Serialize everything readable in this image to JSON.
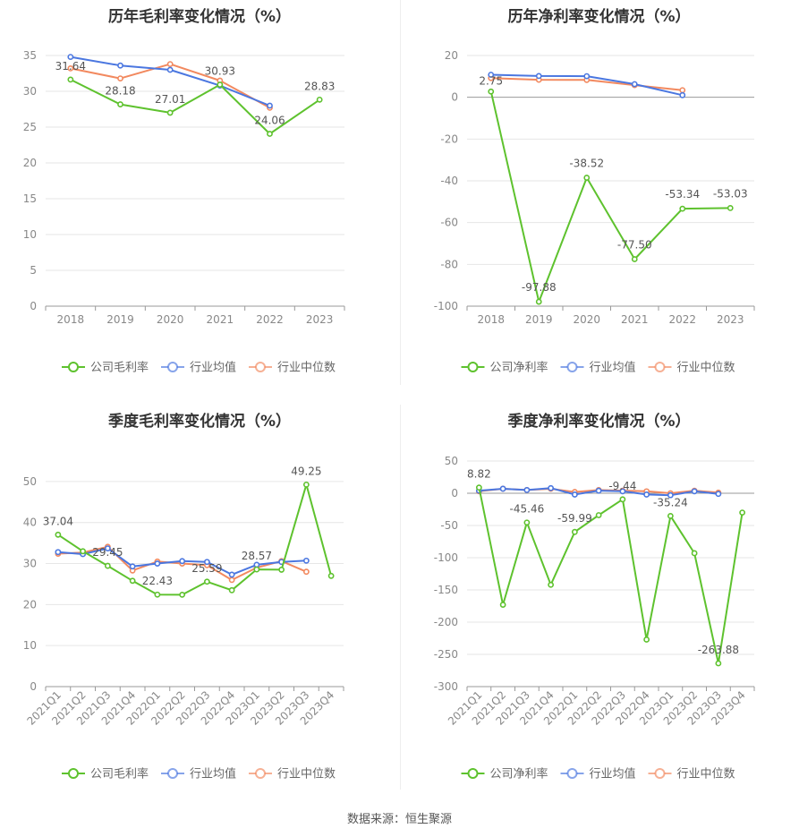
{
  "colors": {
    "company": "#5ec22e",
    "avg": "#4b77e0",
    "median": "#f2895f",
    "grid": "#e6e6e6",
    "axis": "#999999",
    "tick": "#888888",
    "label": "#555555"
  },
  "source": "数据来源：恒生聚源",
  "chart_data": [
    {
      "type": "line",
      "title": "历年毛利率变化情况（%）",
      "categories": [
        "2018",
        "2019",
        "2020",
        "2021",
        "2022",
        "2023"
      ],
      "ylim": [
        0,
        35
      ],
      "yticks": [
        0,
        5,
        10,
        15,
        20,
        25,
        30,
        35
      ],
      "rotate_x": false,
      "series": [
        {
          "name": "公司毛利率",
          "key": "company",
          "values": [
            31.64,
            28.18,
            27.01,
            30.93,
            24.06,
            28.83
          ]
        },
        {
          "name": "行业均值",
          "key": "avg",
          "values": [
            34.8,
            33.6,
            33.0,
            30.8,
            28.0,
            null
          ]
        },
        {
          "name": "行业中位数",
          "key": "median",
          "values": [
            33.2,
            31.8,
            33.8,
            31.5,
            27.7,
            null
          ]
        }
      ],
      "labels": [
        "31.64",
        "28.18",
        "27.01",
        "30.93",
        "24.06",
        "28.83"
      ]
    },
    {
      "type": "line",
      "title": "历年净利率变化情况（%）",
      "categories": [
        "2018",
        "2019",
        "2020",
        "2021",
        "2022",
        "2023"
      ],
      "ylim": [
        -100,
        20
      ],
      "yticks": [
        -100,
        -80,
        -60,
        -40,
        -20,
        0,
        20
      ],
      "rotate_x": false,
      "series": [
        {
          "name": "公司净利率",
          "key": "company",
          "values": [
            2.75,
            -97.88,
            -38.52,
            -77.5,
            -53.34,
            -53.03
          ]
        },
        {
          "name": "行业均值",
          "key": "avg",
          "values": [
            10.8,
            10.2,
            10.1,
            6.3,
            1.0,
            null
          ]
        },
        {
          "name": "行业中位数",
          "key": "median",
          "values": [
            9.2,
            8.4,
            8.3,
            5.8,
            3.4,
            null
          ]
        }
      ],
      "labels": [
        "2.75",
        "-97.88",
        "-38.52",
        "-77.50",
        "-53.34",
        "-53.03"
      ]
    },
    {
      "type": "line",
      "title": "季度毛利率变化情况（%）",
      "categories": [
        "2021Q1",
        "2021Q2",
        "2021Q3",
        "2021Q4",
        "2022Q1",
        "2022Q2",
        "2022Q3",
        "2022Q4",
        "2023Q1",
        "2023Q2",
        "2023Q3",
        "2023Q4"
      ],
      "ylim": [
        0,
        55
      ],
      "yticks": [
        0,
        10,
        20,
        30,
        40,
        50
      ],
      "rotate_x": true,
      "series": [
        {
          "name": "公司毛利率",
          "key": "company",
          "values": [
            37.04,
            33.0,
            29.45,
            25.8,
            22.43,
            22.4,
            25.59,
            23.5,
            28.57,
            28.5,
            49.25,
            27.0
          ]
        },
        {
          "name": "行业均值",
          "key": "avg",
          "values": [
            32.8,
            32.3,
            33.7,
            29.3,
            30.0,
            30.6,
            30.4,
            27.3,
            29.7,
            30.4,
            30.7,
            null
          ]
        },
        {
          "name": "行业中位数",
          "key": "median",
          "values": [
            32.4,
            32.7,
            34.1,
            28.3,
            30.5,
            30.0,
            29.6,
            26.0,
            29.0,
            30.6,
            28.0,
            null
          ]
        }
      ],
      "labels": [
        "37.04",
        "",
        "29.45",
        "",
        "22.43",
        "",
        "25.59",
        "",
        "28.57",
        "",
        "49.25",
        ""
      ]
    },
    {
      "type": "line",
      "title": "季度净利率变化情况（%）",
      "categories": [
        "2021Q1",
        "2021Q2",
        "2021Q3",
        "2021Q4",
        "2022Q1",
        "2022Q2",
        "2022Q3",
        "2022Q4",
        "2023Q1",
        "2023Q2",
        "2023Q3",
        "2023Q4"
      ],
      "ylim": [
        -300,
        50
      ],
      "yticks": [
        -300,
        -250,
        -200,
        -150,
        -100,
        -50,
        0,
        50
      ],
      "rotate_x": true,
      "series": [
        {
          "name": "公司净利率",
          "key": "company",
          "values": [
            8.82,
            -173,
            -45.46,
            -142,
            -59.99,
            -34,
            -9.44,
            -227,
            -35.24,
            -93,
            -263.88,
            -30
          ]
        },
        {
          "name": "行业均值",
          "key": "avg",
          "values": [
            4,
            7,
            5,
            8,
            -2,
            4,
            3,
            -2,
            -3,
            3,
            -1,
            null
          ]
        },
        {
          "name": "行业中位数",
          "key": "median",
          "values": [
            3,
            7,
            5,
            7,
            2,
            5,
            4,
            3,
            0,
            4,
            1,
            null
          ]
        }
      ],
      "labels": [
        "8.82",
        "",
        "-45.46",
        "",
        "-59.99",
        "",
        "-9.44",
        "",
        "-35.24",
        "",
        "-263.88",
        ""
      ]
    }
  ]
}
